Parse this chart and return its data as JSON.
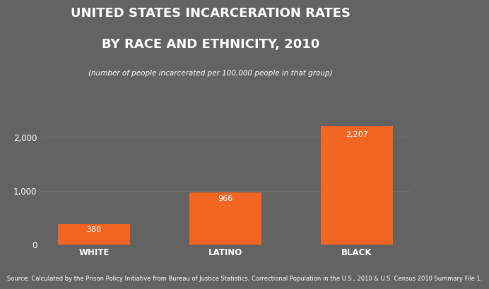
{
  "title_line1": "UNITED STATES INCARCERATION RATES",
  "title_line2": "BY RACE AND ETHNICITY, 2010",
  "subtitle": "(number of people incarcerated per 100,000 people in that group)",
  "source": "Source: Calculated by the Prison Policy Initiative from Bureau of Justice Statistics, Correctional Population in the U.S., 2010 & U.S. Census 2010 Summary File 1.",
  "categories": [
    "WHITE",
    "LATINO",
    "BLACK"
  ],
  "values": [
    380,
    966,
    2207
  ],
  "bar_color": "#F26522",
  "background_color": "#636363",
  "text_color": "#FFFFFF",
  "label_color": "#FFFFFF",
  "yticks": [
    0,
    1000,
    2000
  ],
  "ylim": [
    0,
    2500
  ],
  "title_fontsize": 13,
  "subtitle_fontsize": 7.5,
  "source_fontsize": 6,
  "tick_label_fontsize": 8.5,
  "bar_label_fontsize": 8,
  "value_labels": [
    "380",
    "966",
    "2,207"
  ]
}
